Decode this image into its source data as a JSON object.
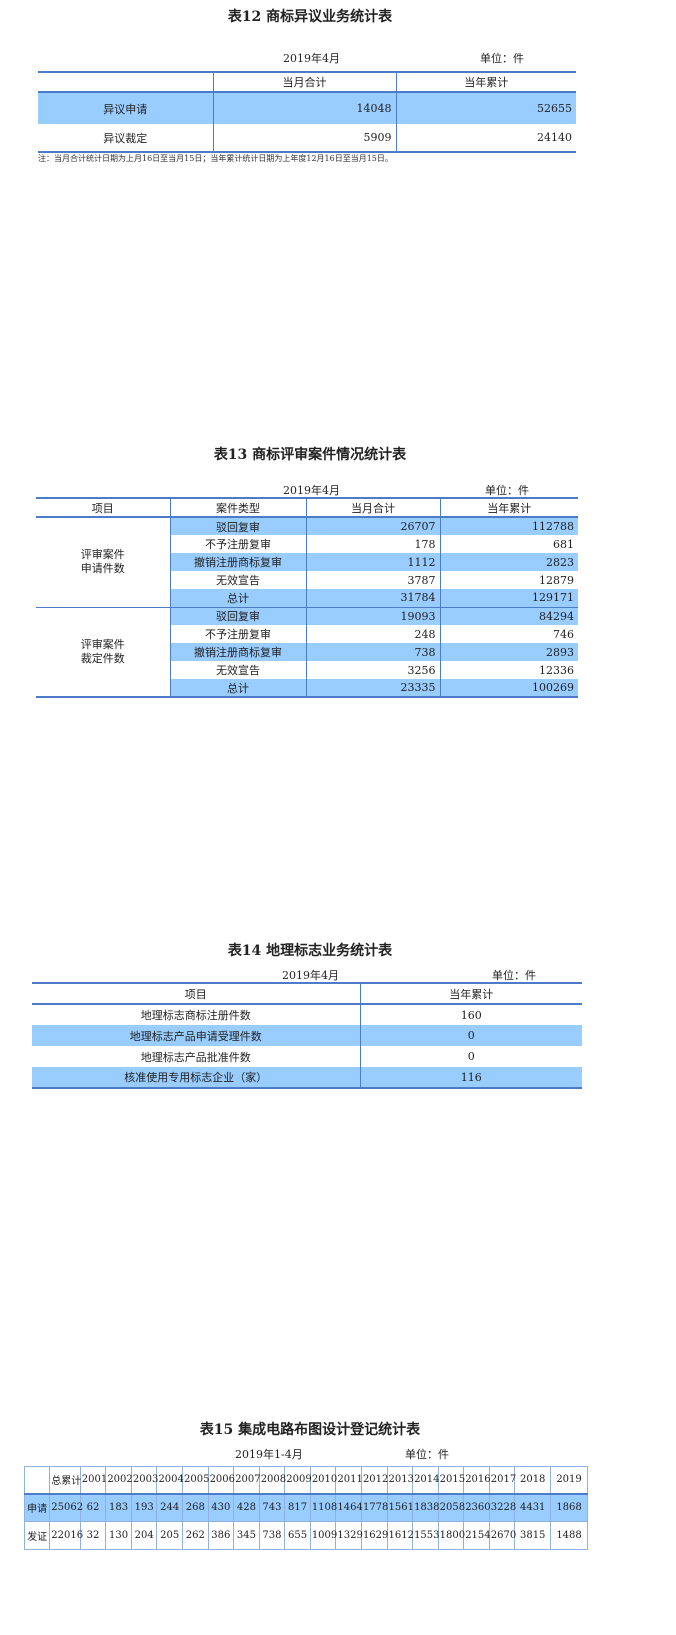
{
  "t12": {
    "title": "表12 商标异议业务统计表",
    "date": "2019年4月",
    "unit": "单位：件",
    "headers": [
      "",
      "当月合计",
      "当年累计"
    ],
    "rows": [
      {
        "label": "异议申请",
        "month": "14048",
        "year": "52655"
      },
      {
        "label": "异议裁定",
        "month": "5909",
        "year": "24140"
      }
    ],
    "note": "注：当月合计统计日期为上月16日至当月15日；当年累计统计日期为上年度12月16日至当月15日。"
  },
  "t13": {
    "title": "表13 商标评审案件情况统计表",
    "date": "2019年4月",
    "unit": "单位：件",
    "headers": [
      "项目",
      "案件类型",
      "当月合计",
      "当年累计"
    ],
    "groups": [
      {
        "label": "评审案件\n申请件数",
        "rows": [
          [
            "驳回复审",
            "26707",
            "112788"
          ],
          [
            "不予注册复审",
            "178",
            "681"
          ],
          [
            "撤销注册商标复审",
            "1112",
            "2823"
          ],
          [
            "无效宣告",
            "3787",
            "12879"
          ],
          [
            "总计",
            "31784",
            "129171"
          ]
        ]
      },
      {
        "label": "评审案件\n裁定件数",
        "rows": [
          [
            "驳回复审",
            "19093",
            "84294"
          ],
          [
            "不予注册复审",
            "248",
            "746"
          ],
          [
            "撤销注册商标复审",
            "738",
            "2893"
          ],
          [
            "无效宣告",
            "3256",
            "12336"
          ],
          [
            "总计",
            "23335",
            "100269"
          ]
        ]
      }
    ]
  },
  "t14": {
    "title": "表14 地理标志业务统计表",
    "date": "2019年4月",
    "unit": "单位：件",
    "headers": [
      "项目",
      "当年累计"
    ],
    "rows": [
      [
        "地理标志商标注册件数",
        "160"
      ],
      [
        "地理标志产品申请受理件数",
        "0"
      ],
      [
        "地理标志产品批准件数",
        "0"
      ],
      [
        "核准使用专用标志企业（家）",
        "116"
      ]
    ]
  },
  "t15": {
    "title": "表15 集成电路布图设计登记统计表",
    "date": "2019年1-4月",
    "unit": "单位：件",
    "headers": [
      "",
      "总累计",
      "2001",
      "2002",
      "2003",
      "2004",
      "2005",
      "2006",
      "2007",
      "2008",
      "2009",
      "2010",
      "2011",
      "2012",
      "2013",
      "2014",
      "2015",
      "2016",
      "2017",
      "2018",
      "2019"
    ],
    "rows": [
      [
        "申请",
        "25062",
        "62",
        "183",
        "193",
        "244",
        "268",
        "430",
        "428",
        "743",
        "817",
        "1108",
        "1464",
        "1778",
        "1561",
        "1838",
        "2058",
        "2360",
        "3228",
        "4431",
        "1868"
      ],
      [
        "发证",
        "22016",
        "32",
        "130",
        "204",
        "205",
        "262",
        "386",
        "345",
        "738",
        "655",
        "1009",
        "1329",
        "1629",
        "1612",
        "1553",
        "1800",
        "2154",
        "2670",
        "3815",
        "1488"
      ]
    ]
  },
  "colors": {
    "highlight": "#99ccff",
    "rule": "#4a7cc9"
  }
}
